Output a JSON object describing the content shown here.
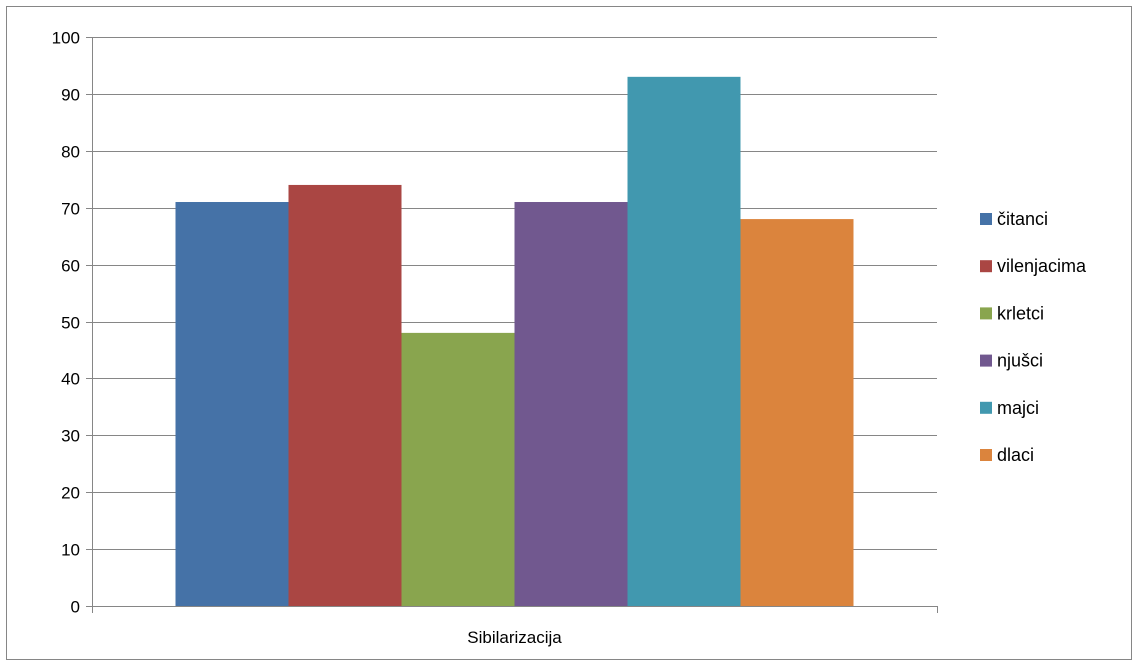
{
  "chart_data": {
    "type": "bar",
    "categories": [
      "Sibilarizacija"
    ],
    "series": [
      {
        "name": "čitanci",
        "values": [
          71
        ],
        "color": "#4572A7"
      },
      {
        "name": "vilenjacima",
        "values": [
          74
        ],
        "color": "#AA4643"
      },
      {
        "name": "krletci",
        "values": [
          48
        ],
        "color": "#89A54E"
      },
      {
        "name": "njušci",
        "values": [
          71
        ],
        "color": "#71588F"
      },
      {
        "name": "majci",
        "values": [
          93
        ],
        "color": "#4198AF"
      },
      {
        "name": "dlaci",
        "values": [
          68
        ],
        "color": "#DB843D"
      }
    ],
    "ylim": [
      0,
      100
    ],
    "yticks": [
      0,
      10,
      20,
      30,
      40,
      50,
      60,
      70,
      80,
      90,
      100
    ],
    "grid": true,
    "legend_position": "right"
  }
}
